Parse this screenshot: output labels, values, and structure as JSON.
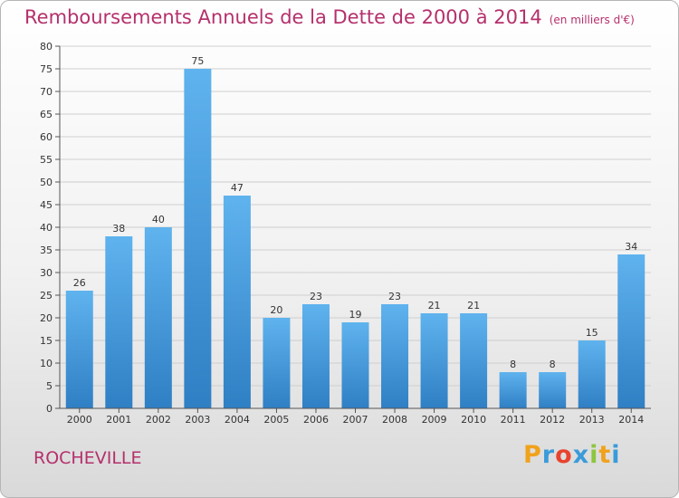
{
  "title": "Remboursements Annuels de la Dette de 2000 à 2014",
  "unit": "(en milliers d'€)",
  "place": "ROCHEVILLE",
  "logo": {
    "letters": [
      "P",
      "r",
      "o",
      "x",
      "i",
      "t",
      "i"
    ],
    "colors": [
      "#f0a21c",
      "#3a9bd9",
      "#e8432f",
      "#3a9bd9",
      "#8dc63f",
      "#f0a21c",
      "#3a9bd9"
    ]
  },
  "colors": {
    "bar_top": "#5fb3ee",
    "bar_bottom": "#2f7fc4",
    "accent": "#b5306c"
  },
  "chart_data": {
    "type": "bar",
    "categories": [
      "2000",
      "2001",
      "2002",
      "2003",
      "2004",
      "2005",
      "2006",
      "2007",
      "2008",
      "2009",
      "2010",
      "2011",
      "2012",
      "2013",
      "2014"
    ],
    "values": [
      26,
      38,
      40,
      75,
      47,
      20,
      23,
      19,
      23,
      21,
      21,
      8,
      8,
      15,
      34
    ],
    "ylim": [
      0,
      80
    ],
    "yticks": [
      0,
      5,
      10,
      15,
      20,
      25,
      30,
      35,
      40,
      45,
      50,
      55,
      60,
      65,
      70,
      75,
      80
    ],
    "grid": true
  }
}
